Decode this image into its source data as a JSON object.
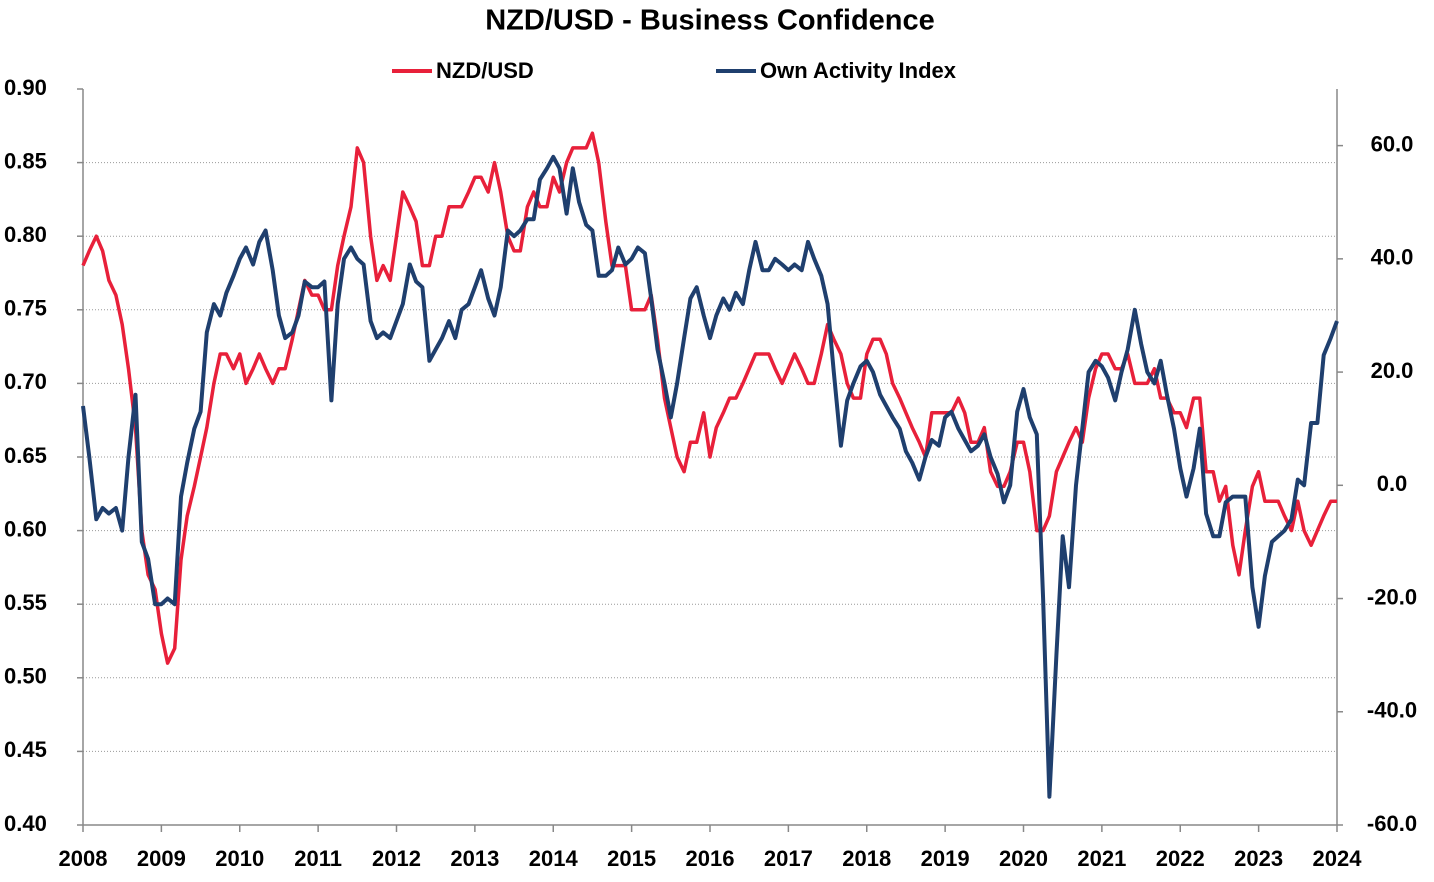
{
  "chart_data": {
    "type": "line",
    "title": "NZD/USD - Business Confidence",
    "x": [
      2008,
      2008.08,
      2008.17,
      2008.25,
      2008.33,
      2008.42,
      2008.5,
      2008.58,
      2008.67,
      2008.75,
      2008.83,
      2008.92,
      2009,
      2009.08,
      2009.17,
      2009.25,
      2009.33,
      2009.42,
      2009.5,
      2009.58,
      2009.67,
      2009.75,
      2009.83,
      2009.92,
      2010,
      2010.08,
      2010.17,
      2010.25,
      2010.33,
      2010.42,
      2010.5,
      2010.58,
      2010.67,
      2010.75,
      2010.83,
      2010.92,
      2011,
      2011.08,
      2011.17,
      2011.25,
      2011.33,
      2011.42,
      2011.5,
      2011.58,
      2011.67,
      2011.75,
      2011.83,
      2011.92,
      2012,
      2012.08,
      2012.17,
      2012.25,
      2012.33,
      2012.42,
      2012.5,
      2012.58,
      2012.67,
      2012.75,
      2012.83,
      2012.92,
      2013,
      2013.08,
      2013.17,
      2013.25,
      2013.33,
      2013.42,
      2013.5,
      2013.58,
      2013.67,
      2013.75,
      2013.83,
      2013.92,
      2014,
      2014.08,
      2014.17,
      2014.25,
      2014.33,
      2014.42,
      2014.5,
      2014.58,
      2014.67,
      2014.75,
      2014.83,
      2014.92,
      2015,
      2015.08,
      2015.17,
      2015.25,
      2015.33,
      2015.42,
      2015.5,
      2015.58,
      2015.67,
      2015.75,
      2015.83,
      2015.92,
      2016,
      2016.08,
      2016.17,
      2016.25,
      2016.33,
      2016.42,
      2016.5,
      2016.58,
      2016.67,
      2016.75,
      2016.83,
      2016.92,
      2017,
      2017.08,
      2017.17,
      2017.25,
      2017.33,
      2017.42,
      2017.5,
      2017.58,
      2017.67,
      2017.75,
      2017.83,
      2017.92,
      2018,
      2018.08,
      2018.17,
      2018.25,
      2018.33,
      2018.42,
      2018.5,
      2018.58,
      2018.67,
      2018.75,
      2018.83,
      2018.92,
      2019,
      2019.08,
      2019.17,
      2019.25,
      2019.33,
      2019.42,
      2019.5,
      2019.58,
      2019.67,
      2019.75,
      2019.83,
      2019.92,
      2020,
      2020.08,
      2020.17,
      2020.25,
      2020.33,
      2020.42,
      2020.5,
      2020.58,
      2020.67,
      2020.75,
      2020.83,
      2020.92,
      2021,
      2021.08,
      2021.17,
      2021.25,
      2021.33,
      2021.42,
      2021.5,
      2021.58,
      2021.67,
      2021.75,
      2021.83,
      2021.92,
      2022,
      2022.08,
      2022.17,
      2022.25,
      2022.33,
      2022.42,
      2022.5,
      2022.58,
      2022.67,
      2022.75,
      2022.83,
      2022.92,
      2023,
      2023.08,
      2023.17,
      2023.25,
      2023.33,
      2023.42,
      2023.5,
      2023.58,
      2023.67,
      2023.75,
      2023.83,
      2023.92,
      2024
    ],
    "series": [
      {
        "name": "NZD/USD",
        "color": "#e8203a",
        "values": [
          0.78,
          0.79,
          0.8,
          0.79,
          0.77,
          0.76,
          0.74,
          0.71,
          0.67,
          0.6,
          0.57,
          0.56,
          0.53,
          0.51,
          0.52,
          0.58,
          0.61,
          0.63,
          0.65,
          0.67,
          0.7,
          0.72,
          0.72,
          0.71,
          0.72,
          0.7,
          0.71,
          0.72,
          0.71,
          0.7,
          0.71,
          0.71,
          0.73,
          0.75,
          0.77,
          0.76,
          0.76,
          0.75,
          0.75,
          0.78,
          0.8,
          0.82,
          0.86,
          0.85,
          0.8,
          0.77,
          0.78,
          0.77,
          0.8,
          0.83,
          0.82,
          0.81,
          0.78,
          0.78,
          0.8,
          0.8,
          0.82,
          0.82,
          0.82,
          0.83,
          0.84,
          0.84,
          0.83,
          0.85,
          0.83,
          0.8,
          0.79,
          0.79,
          0.82,
          0.83,
          0.82,
          0.82,
          0.84,
          0.83,
          0.85,
          0.86,
          0.86,
          0.86,
          0.87,
          0.85,
          0.81,
          0.78,
          0.78,
          0.78,
          0.75,
          0.75,
          0.75,
          0.76,
          0.73,
          0.69,
          0.67,
          0.65,
          0.64,
          0.66,
          0.66,
          0.68,
          0.65,
          0.67,
          0.68,
          0.69,
          0.69,
          0.7,
          0.71,
          0.72,
          0.72,
          0.72,
          0.71,
          0.7,
          0.71,
          0.72,
          0.71,
          0.7,
          0.7,
          0.72,
          0.74,
          0.73,
          0.72,
          0.7,
          0.69,
          0.69,
          0.72,
          0.73,
          0.73,
          0.72,
          0.7,
          0.69,
          0.68,
          0.67,
          0.66,
          0.65,
          0.68,
          0.68,
          0.68,
          0.68,
          0.69,
          0.68,
          0.66,
          0.66,
          0.67,
          0.64,
          0.63,
          0.63,
          0.64,
          0.66,
          0.66,
          0.64,
          0.6,
          0.6,
          0.61,
          0.64,
          0.65,
          0.66,
          0.67,
          0.66,
          0.69,
          0.71,
          0.72,
          0.72,
          0.71,
          0.71,
          0.72,
          0.7,
          0.7,
          0.7,
          0.71,
          0.69,
          0.69,
          0.68,
          0.68,
          0.67,
          0.69,
          0.69,
          0.64,
          0.64,
          0.62,
          0.63,
          0.59,
          0.57,
          0.6,
          0.63,
          0.64,
          0.62,
          0.62,
          0.62,
          0.61,
          0.6,
          0.62,
          0.6,
          0.59,
          0.6,
          0.61,
          0.62,
          0.62
        ]
      },
      {
        "name": "Own Activity Index",
        "color": "#1f3f6e",
        "axis": "y2",
        "values": [
          14,
          5,
          -6,
          -4,
          -5,
          -4,
          -8,
          5,
          16,
          -10,
          -13,
          -21,
          -21,
          -20,
          -21,
          -2,
          4,
          10,
          13,
          27,
          32,
          30,
          34,
          37,
          40,
          42,
          39,
          43,
          45,
          38,
          30,
          26,
          27,
          30,
          36,
          35,
          35,
          36,
          15,
          32,
          40,
          42,
          40,
          39,
          29,
          26,
          27,
          26,
          29,
          32,
          39,
          36,
          35,
          22,
          24,
          26,
          29,
          26,
          31,
          32,
          35,
          38,
          33,
          30,
          35,
          45,
          44,
          45,
          47,
          47,
          54,
          56,
          58,
          56,
          48,
          56,
          50,
          46,
          45,
          37,
          37,
          38,
          42,
          39,
          40,
          42,
          41,
          33,
          24,
          18,
          12,
          18,
          26,
          33,
          35,
          30,
          26,
          30,
          33,
          31,
          34,
          32,
          38,
          43,
          38,
          38,
          40,
          39,
          38,
          39,
          38,
          43,
          40,
          37,
          32,
          20,
          7,
          15,
          18,
          21,
          22,
          20,
          16,
          14,
          12,
          10,
          6,
          4,
          1,
          5,
          8,
          7,
          12,
          13,
          10,
          8,
          6,
          7,
          9,
          5,
          2,
          -3,
          0,
          13,
          17,
          12,
          9,
          -20,
          -55,
          -30,
          -9,
          -18,
          0,
          10,
          20,
          22,
          21,
          19,
          15,
          20,
          24,
          31,
          25,
          20,
          18,
          22,
          16,
          10,
          3,
          -2,
          3,
          10,
          -5,
          -9,
          -9,
          -3,
          -2,
          -2,
          -2,
          -18,
          -25,
          -16,
          -10,
          -9,
          -8,
          -6,
          1,
          0,
          11,
          11,
          23,
          26,
          29
        ]
      }
    ],
    "xlim": [
      2008,
      2024
    ],
    "xticks": [
      2008,
      2009,
      2010,
      2011,
      2012,
      2013,
      2014,
      2015,
      2016,
      2017,
      2018,
      2019,
      2020,
      2021,
      2022,
      2023,
      2024
    ],
    "ylim": [
      0.4,
      0.9
    ],
    "yticks": [
      {
        "value": 0.4,
        "label": "0.40"
      },
      {
        "value": 0.45,
        "label": "0.45"
      },
      {
        "value": 0.5,
        "label": "0.50"
      },
      {
        "value": 0.55,
        "label": "0.55"
      },
      {
        "value": 0.6,
        "label": "0.60"
      },
      {
        "value": 0.65,
        "label": "0.65"
      },
      {
        "value": 0.7,
        "label": "0.70"
      },
      {
        "value": 0.75,
        "label": "0.75"
      },
      {
        "value": 0.8,
        "label": "0.80"
      },
      {
        "value": 0.85,
        "label": "0.85"
      },
      {
        "value": 0.9,
        "label": "0.90"
      }
    ],
    "y2lim": [
      -60,
      70
    ],
    "y2ticks": [
      {
        "value": -60,
        "label": "-60.0"
      },
      {
        "value": -40,
        "label": "-40.0"
      },
      {
        "value": -20,
        "label": "-20.0"
      },
      {
        "value": 0,
        "label": "0.0"
      },
      {
        "value": 20,
        "label": "20.0"
      },
      {
        "value": 40,
        "label": "40.0"
      },
      {
        "value": 60,
        "label": "60.0"
      }
    ],
    "grid": true,
    "legend": "top"
  }
}
